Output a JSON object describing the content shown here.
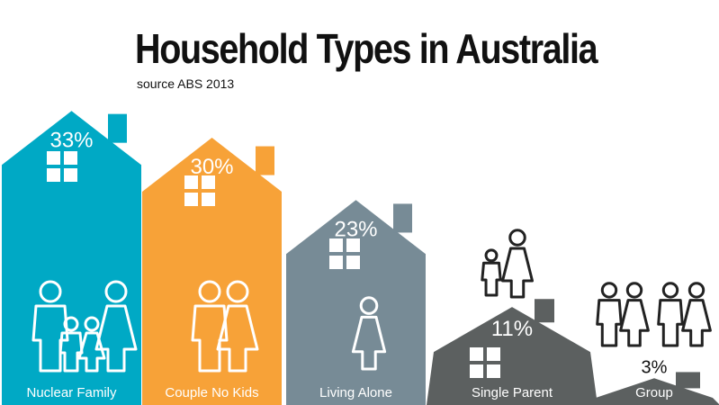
{
  "title": "Household Types in Australia",
  "subtitle": "source ABS 2013",
  "colors": {
    "nuclear": "#00a9c5",
    "couple": "#f7a238",
    "alone": "#778b96",
    "single": "#5c6060",
    "group": "#5c6060",
    "icon_light": "#ffffff",
    "icon_dark": "#222222"
  },
  "chart_data": {
    "type": "bar",
    "title": "Household Types in Australia",
    "subtitle": "source ABS 2013",
    "categories": [
      "Nuclear Family",
      "Couple No Kids",
      "Living Alone",
      "Single Parent",
      "Group"
    ],
    "values": [
      33,
      30,
      23,
      11,
      3
    ],
    "value_labels": [
      "33%",
      "30%",
      "23%",
      "11%",
      "3%"
    ],
    "unit": "%",
    "ylim": [
      0,
      33
    ],
    "grid": false,
    "legend": "none"
  }
}
